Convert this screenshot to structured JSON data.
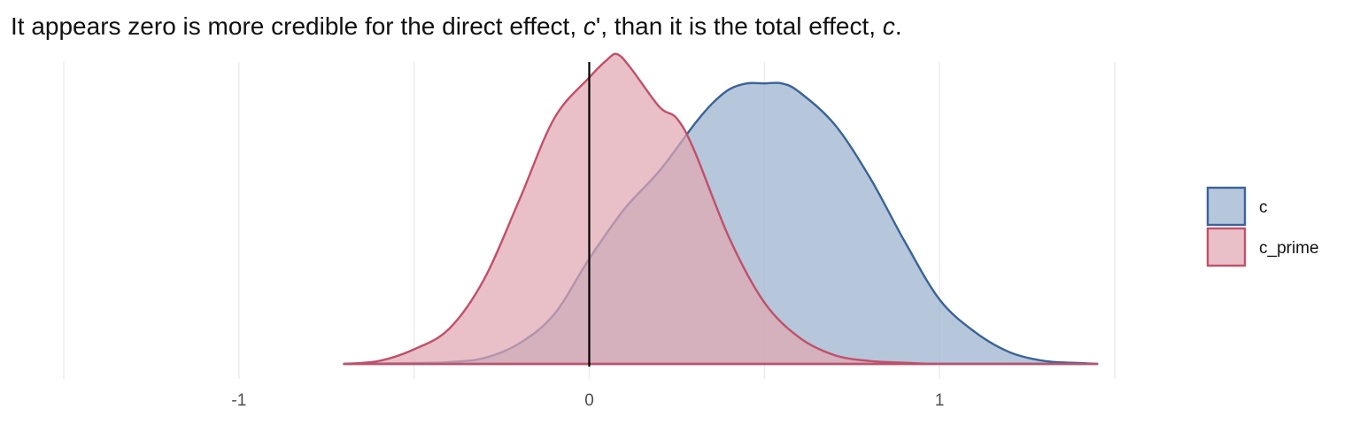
{
  "chart_data": {
    "type": "area",
    "title_parts": {
      "before": "It appears zero is more credible for the direct effect, ",
      "sym1": "c",
      "mid": "', than it is the total effect, ",
      "sym2": "c",
      "after": "."
    },
    "xlabel": "",
    "ylabel": "",
    "xlim": [
      -1.5,
      1.5
    ],
    "x_ticks": [
      {
        "value": -1,
        "label": "-1"
      },
      {
        "value": 0,
        "label": "0"
      },
      {
        "value": 1,
        "label": "1"
      }
    ],
    "x_minor_gridlines": [
      -1.5,
      -1,
      -0.5,
      0,
      0.5,
      1,
      1.5
    ],
    "vline": 0,
    "grid": true,
    "legend_position": "right",
    "series": [
      {
        "name": "c",
        "fill": "#9AB0CD",
        "stroke": "#3A6399",
        "x": [
          -0.7,
          -0.5,
          -0.4,
          -0.3,
          -0.2,
          -0.1,
          0.0,
          0.1,
          0.2,
          0.3,
          0.35,
          0.4,
          0.45,
          0.5,
          0.55,
          0.6,
          0.7,
          0.8,
          0.9,
          1.0,
          1.1,
          1.2,
          1.3,
          1.4,
          1.45
        ],
        "y": [
          0.0,
          0.003,
          0.006,
          0.02,
          0.07,
          0.17,
          0.36,
          0.53,
          0.66,
          0.82,
          0.89,
          0.94,
          0.96,
          0.96,
          0.96,
          0.93,
          0.82,
          0.64,
          0.42,
          0.22,
          0.11,
          0.04,
          0.01,
          0.003,
          0.0
        ]
      },
      {
        "name": "c_prime",
        "fill": "#E0A7B2",
        "stroke": "#C0506A",
        "x": [
          -0.7,
          -0.6,
          -0.5,
          -0.4,
          -0.3,
          -0.2,
          -0.1,
          0.0,
          0.05,
          0.08,
          0.12,
          0.2,
          0.25,
          0.3,
          0.4,
          0.5,
          0.6,
          0.7,
          0.8,
          0.9,
          1.0,
          1.2,
          1.45
        ],
        "y": [
          0.0,
          0.01,
          0.05,
          0.12,
          0.29,
          0.56,
          0.84,
          0.98,
          1.04,
          1.06,
          1.01,
          0.88,
          0.84,
          0.73,
          0.43,
          0.21,
          0.09,
          0.03,
          0.01,
          0.004,
          0.0,
          0.0,
          0.0
        ]
      }
    ]
  }
}
